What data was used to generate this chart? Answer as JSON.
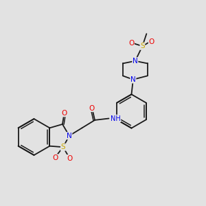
{
  "background_color": "#e2e2e2",
  "bond_color": "#1a1a1a",
  "atom_colors": {
    "N": "#0000ee",
    "O": "#ee0000",
    "S": "#ccaa00",
    "C": "#1a1a1a",
    "H": "#888888"
  },
  "figsize": [
    3.0,
    3.0
  ],
  "dpi": 100,
  "lw": 1.3,
  "fs": 7.0
}
